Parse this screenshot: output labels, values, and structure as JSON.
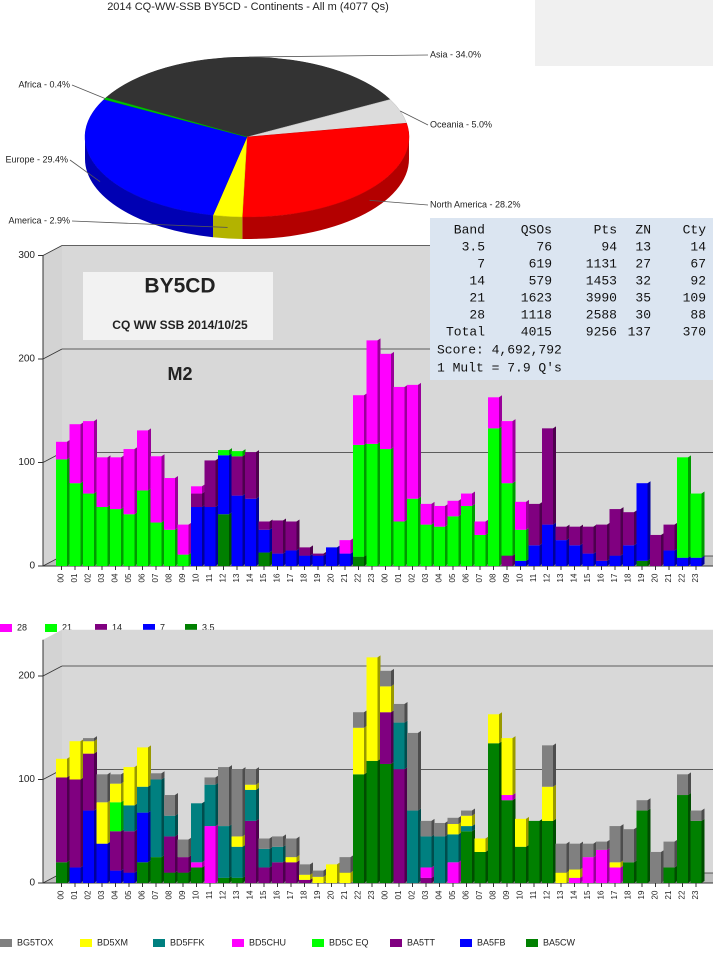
{
  "chart_data": [
    {
      "type": "pie",
      "title": "2014 CQ-WW-SSB BY5CD - Continents - All m (4077 Qs)",
      "values": [
        34.0,
        5.0,
        28.2,
        2.9,
        29.4,
        0.4
      ],
      "value_labels": [
        "Asia - 34.0%",
        "Oceania - 5.0%",
        "North America - 28.2%",
        "America - 2.9%",
        "Europe - 29.4%",
        "Africa - 0.4%"
      ],
      "colors": [
        "#333333",
        "#dcdcdc",
        "#ff0000",
        "#ffff00",
        "#0000ff",
        "#00c000"
      ]
    },
    {
      "type": "bar",
      "stacked": true,
      "grid": true,
      "annotations": [
        "BY5CD",
        "CQ WW SSB 2014/10/25",
        "M2"
      ],
      "categories": [
        "00",
        "01",
        "02",
        "03",
        "04",
        "05",
        "06",
        "07",
        "08",
        "09",
        "10",
        "11",
        "12",
        "13",
        "14",
        "15",
        "16",
        "17",
        "18",
        "19",
        "20",
        "21",
        "22",
        "23",
        "00",
        "01",
        "02",
        "03",
        "04",
        "05",
        "06",
        "07",
        "08",
        "09",
        "10",
        "11",
        "12",
        "13",
        "14",
        "15",
        "16",
        "17",
        "18",
        "19",
        "20",
        "21",
        "22",
        "23"
      ],
      "ylim": [
        0,
        300
      ],
      "yticks": [
        0,
        100,
        200,
        300
      ],
      "series": [
        {
          "name": "28",
          "color": "#ff00ff",
          "values": [
            17,
            57,
            70,
            48,
            50,
            63,
            58,
            64,
            50,
            29,
            7,
            0,
            0,
            0,
            0,
            0,
            0,
            0,
            0,
            0,
            0,
            13,
            48,
            100,
            92,
            130,
            110,
            20,
            20,
            15,
            12,
            13,
            30,
            60,
            27,
            0,
            0,
            0,
            0,
            0,
            0,
            0,
            0,
            0,
            0,
            0,
            0,
            0
          ]
        },
        {
          "name": "21",
          "color": "#00ff00",
          "values": [
            103,
            80,
            70,
            57,
            55,
            50,
            73,
            42,
            35,
            11,
            0,
            0,
            5,
            5,
            0,
            0,
            0,
            0,
            0,
            0,
            0,
            0,
            108,
            118,
            113,
            43,
            65,
            40,
            38,
            48,
            58,
            30,
            133,
            70,
            30,
            0,
            0,
            0,
            0,
            0,
            0,
            0,
            0,
            0,
            0,
            0,
            97,
            62
          ]
        },
        {
          "name": "14",
          "color": "#800080",
          "values": [
            0,
            0,
            0,
            0,
            0,
            0,
            0,
            0,
            0,
            0,
            13,
            45,
            0,
            38,
            45,
            8,
            32,
            28,
            8,
            2,
            0,
            0,
            0,
            0,
            0,
            0,
            0,
            0,
            0,
            0,
            0,
            0,
            0,
            10,
            0,
            40,
            93,
            13,
            18,
            26,
            35,
            45,
            32,
            0,
            30,
            25,
            0,
            0
          ]
        },
        {
          "name": "7",
          "color": "#0000ff",
          "values": [
            0,
            0,
            0,
            0,
            0,
            0,
            0,
            0,
            0,
            0,
            57,
            57,
            57,
            68,
            65,
            22,
            12,
            15,
            10,
            10,
            18,
            12,
            0,
            0,
            0,
            0,
            0,
            0,
            0,
            0,
            0,
            0,
            0,
            0,
            5,
            20,
            40,
            25,
            20,
            12,
            5,
            10,
            20,
            75,
            0,
            15,
            8,
            8
          ]
        },
        {
          "name": "3.5",
          "color": "#008000",
          "values": [
            0,
            0,
            0,
            0,
            0,
            0,
            0,
            0,
            0,
            0,
            0,
            0,
            50,
            0,
            0,
            13,
            0,
            0,
            0,
            0,
            0,
            0,
            9,
            0,
            0,
            0,
            0,
            0,
            0,
            0,
            0,
            0,
            0,
            0,
            0,
            0,
            0,
            0,
            0,
            0,
            0,
            0,
            0,
            5,
            0,
            0,
            0,
            0
          ]
        }
      ]
    },
    {
      "type": "bar",
      "stacked": true,
      "grid": true,
      "categories": [
        "00",
        "01",
        "02",
        "03",
        "04",
        "05",
        "06",
        "07",
        "08",
        "09",
        "10",
        "11",
        "12",
        "13",
        "14",
        "15",
        "16",
        "17",
        "18",
        "19",
        "20",
        "21",
        "22",
        "23",
        "00",
        "01",
        "02",
        "03",
        "04",
        "05",
        "06",
        "07",
        "08",
        "09",
        "10",
        "11",
        "12",
        "13",
        "14",
        "15",
        "16",
        "17",
        "18",
        "19",
        "20",
        "21",
        "22",
        "23"
      ],
      "ylim": [
        0,
        235
      ],
      "yticks": [
        0,
        100,
        200
      ],
      "series": [
        {
          "name": "BG5TOX",
          "color": "#808080",
          "values": [
            0,
            0,
            3,
            27,
            9,
            0,
            0,
            6,
            20,
            17,
            0,
            7,
            57,
            65,
            15,
            10,
            10,
            18,
            10,
            6,
            0,
            15,
            15,
            0,
            15,
            18,
            75,
            15,
            13,
            6,
            5,
            0,
            0,
            0,
            0,
            0,
            40,
            28,
            25,
            13,
            8,
            35,
            32,
            10,
            30,
            25,
            20,
            10
          ]
        },
        {
          "name": "BD5XM",
          "color": "#ffff00",
          "values": [
            18,
            37,
            12,
            40,
            18,
            37,
            38,
            0,
            0,
            0,
            0,
            0,
            0,
            10,
            5,
            0,
            0,
            5,
            5,
            6,
            18,
            10,
            45,
            100,
            25,
            0,
            0,
            0,
            0,
            10,
            10,
            13,
            28,
            55,
            27,
            0,
            33,
            10,
            8,
            0,
            0,
            5,
            0,
            0,
            0,
            0,
            0,
            0
          ]
        },
        {
          "name": "BD5FFK",
          "color": "#008080",
          "values": [
            0,
            0,
            0,
            0,
            0,
            25,
            25,
            75,
            20,
            0,
            57,
            40,
            50,
            30,
            30,
            18,
            15,
            0,
            0,
            0,
            0,
            0,
            0,
            0,
            0,
            45,
            70,
            30,
            45,
            27,
            5,
            0,
            0,
            0,
            0,
            0,
            0,
            0,
            0,
            0,
            0,
            0,
            0,
            0,
            0,
            0,
            0,
            0
          ]
        },
        {
          "name": "BD5CHU",
          "color": "#ff00ff",
          "values": [
            0,
            0,
            0,
            0,
            0,
            0,
            0,
            0,
            0,
            0,
            5,
            55,
            0,
            0,
            0,
            0,
            0,
            0,
            0,
            0,
            0,
            0,
            0,
            0,
            0,
            0,
            0,
            10,
            0,
            20,
            0,
            0,
            0,
            5,
            0,
            0,
            0,
            0,
            5,
            25,
            32,
            15,
            0,
            0,
            0,
            0,
            0,
            0
          ]
        },
        {
          "name": "BD5C EQ",
          "color": "#00ff00",
          "values": [
            0,
            0,
            0,
            0,
            28,
            0,
            0,
            0,
            0,
            0,
            0,
            0,
            0,
            0,
            0,
            0,
            0,
            0,
            0,
            0,
            0,
            0,
            0,
            0,
            0,
            0,
            0,
            0,
            0,
            0,
            0,
            0,
            0,
            0,
            0,
            0,
            0,
            0,
            0,
            0,
            0,
            0,
            0,
            0,
            0,
            0,
            0,
            0
          ]
        },
        {
          "name": "BA5TT",
          "color": "#800080",
          "values": [
            82,
            85,
            55,
            0,
            38,
            40,
            0,
            0,
            35,
            15,
            0,
            0,
            0,
            0,
            60,
            15,
            20,
            20,
            3,
            0,
            0,
            0,
            0,
            0,
            50,
            110,
            0,
            5,
            0,
            0,
            0,
            0,
            0,
            0,
            0,
            0,
            0,
            0,
            0,
            0,
            0,
            0,
            0,
            0,
            0,
            0,
            0,
            0
          ]
        },
        {
          "name": "BA5FB",
          "color": "#0000ff",
          "values": [
            0,
            15,
            70,
            38,
            12,
            10,
            48,
            0,
            0,
            0,
            0,
            0,
            0,
            0,
            0,
            0,
            0,
            0,
            0,
            0,
            0,
            0,
            0,
            0,
            0,
            0,
            0,
            0,
            0,
            0,
            0,
            0,
            0,
            0,
            0,
            0,
            0,
            0,
            0,
            0,
            0,
            0,
            0,
            0,
            0,
            0,
            0,
            0
          ]
        },
        {
          "name": "BA5CW",
          "color": "#008000",
          "values": [
            20,
            0,
            0,
            0,
            0,
            0,
            20,
            25,
            10,
            10,
            15,
            0,
            5,
            5,
            0,
            0,
            0,
            0,
            0,
            0,
            0,
            0,
            105,
            118,
            115,
            0,
            0,
            0,
            0,
            0,
            50,
            30,
            135,
            80,
            35,
            60,
            60,
            0,
            0,
            0,
            0,
            0,
            20,
            70,
            0,
            15,
            85,
            60
          ]
        }
      ]
    }
  ],
  "table": {
    "header": [
      "Band",
      "QSOs",
      "Pts",
      "ZN",
      "Cty"
    ],
    "rows": [
      [
        3.5,
        76,
        94,
        13,
        14
      ],
      [
        7,
        619,
        1131,
        27,
        67
      ],
      [
        14,
        579,
        1453,
        32,
        92
      ],
      [
        21,
        1623,
        3990,
        35,
        109
      ],
      [
        28,
        1118,
        2588,
        30,
        88
      ],
      [
        "Total",
        4015,
        9256,
        137,
        370
      ]
    ],
    "score": "Score: 4,692,792",
    "mult": "1 Mult = 7.9 Q's"
  }
}
